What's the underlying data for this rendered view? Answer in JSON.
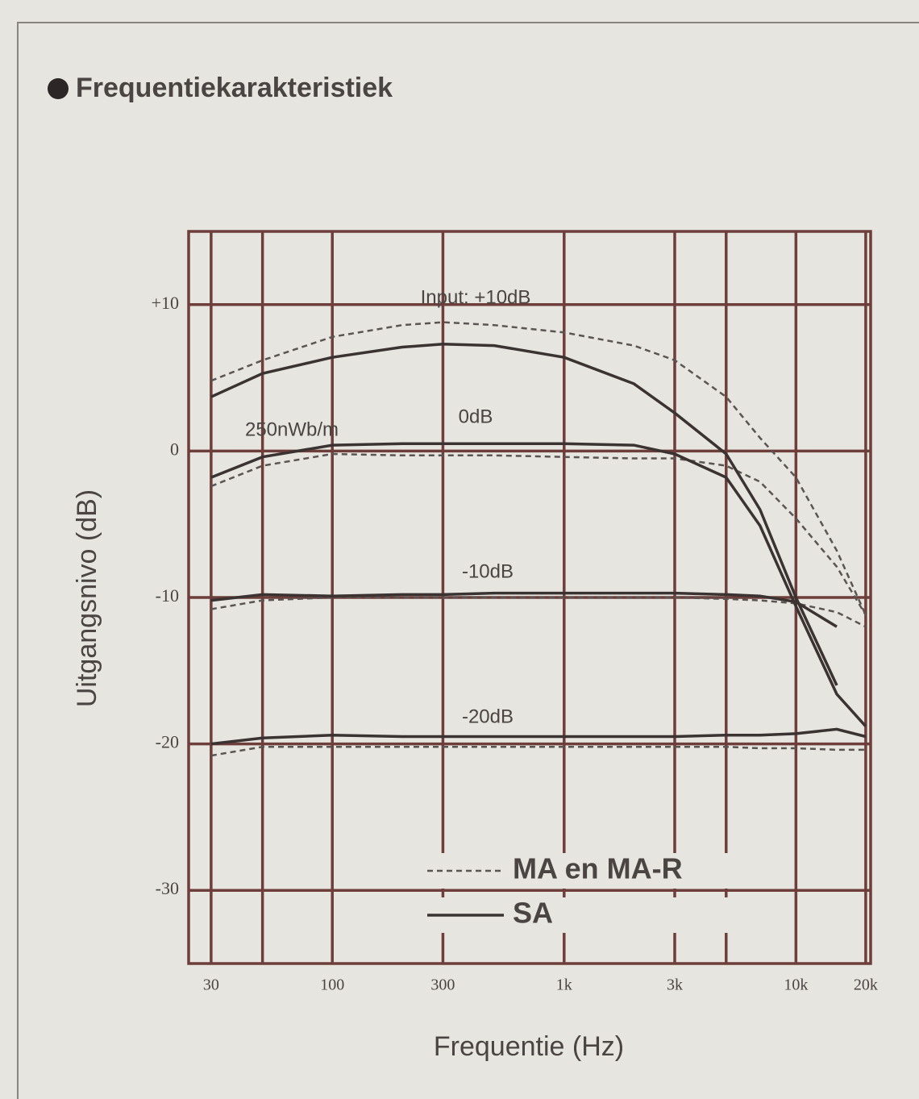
{
  "chart_data": {
    "type": "line",
    "title": "Frequentiekarakteristiek",
    "xlabel": "Frequentie (Hz)",
    "ylabel": "Uitgangsnivo (dB)",
    "log_x": true,
    "grid": true,
    "legend": "lower-right",
    "x": [
      30,
      50,
      100,
      200,
      300,
      500,
      1000,
      2000,
      3000,
      5000,
      7000,
      10000,
      15000,
      20000
    ],
    "xlim": [
      24,
      21000
    ],
    "xticks": [
      30,
      {
        "value": 50,
        "label": null
      },
      100,
      300,
      {
        "value": 1000,
        "label": "1k"
      },
      {
        "value": 3000,
        "label": "3k"
      },
      {
        "value": 5000,
        "label": null
      },
      {
        "value": 10000,
        "label": "10k"
      },
      {
        "value": 20000,
        "label": "20k"
      }
    ],
    "ylim": [
      -35,
      15
    ],
    "yticks": [
      {
        "value": 10,
        "label": "+10"
      },
      0,
      -10,
      -20,
      -30
    ],
    "annotations": [
      "Input: +10dB",
      "0dB",
      "-10dB",
      "-20dB",
      "250nWb/m"
    ],
    "series": [
      {
        "name": "MA en MA-R",
        "color": "#5a5452",
        "dashed": true,
        "curves": [
          [
            4.8,
            6.2,
            7.8,
            8.6,
            8.8,
            8.6,
            8.1,
            7.2,
            6.2,
            3.7,
            0.9,
            -1.8,
            -6.8,
            -11.2
          ],
          [
            -2.4,
            -1.0,
            -0.2,
            -0.3,
            -0.3,
            -0.3,
            -0.4,
            -0.5,
            -0.5,
            -1.0,
            -2.1,
            -4.6,
            -7.9,
            -11.2
          ],
          [
            -10.8,
            -10.2,
            -10.0,
            -10.0,
            -10.0,
            -10.0,
            -10.0,
            -10.0,
            -10.0,
            -10.1,
            -10.2,
            -10.4,
            -11.0,
            -12.0
          ],
          [
            -20.8,
            -20.2,
            -20.2,
            -20.2,
            -20.2,
            -20.2,
            -20.2,
            -20.2,
            -20.2,
            -20.2,
            -20.3,
            -20.3,
            -20.4,
            -20.4
          ]
        ]
      },
      {
        "name": "SA",
        "color": "#3a3332",
        "dashed": false,
        "curves": [
          [
            3.7,
            5.3,
            6.4,
            7.1,
            7.3,
            7.2,
            6.4,
            4.6,
            2.6,
            -0.2,
            -4.0,
            -10.0,
            -16.0,
            null
          ],
          [
            -1.8,
            -0.4,
            0.4,
            0.5,
            0.5,
            0.5,
            0.5,
            0.4,
            -0.2,
            -1.8,
            -5.1,
            -10.6,
            -16.6,
            -18.8
          ],
          [
            -10.2,
            -9.8,
            -9.9,
            -9.8,
            -9.8,
            -9.7,
            -9.7,
            -9.7,
            -9.7,
            -9.8,
            -9.9,
            -10.3,
            -12.0,
            null
          ],
          [
            -20.0,
            -19.6,
            -19.4,
            -19.5,
            -19.5,
            -19.5,
            -19.5,
            -19.5,
            -19.5,
            -19.4,
            -19.4,
            -19.3,
            -19.0,
            -19.5
          ]
        ]
      }
    ]
  }
}
